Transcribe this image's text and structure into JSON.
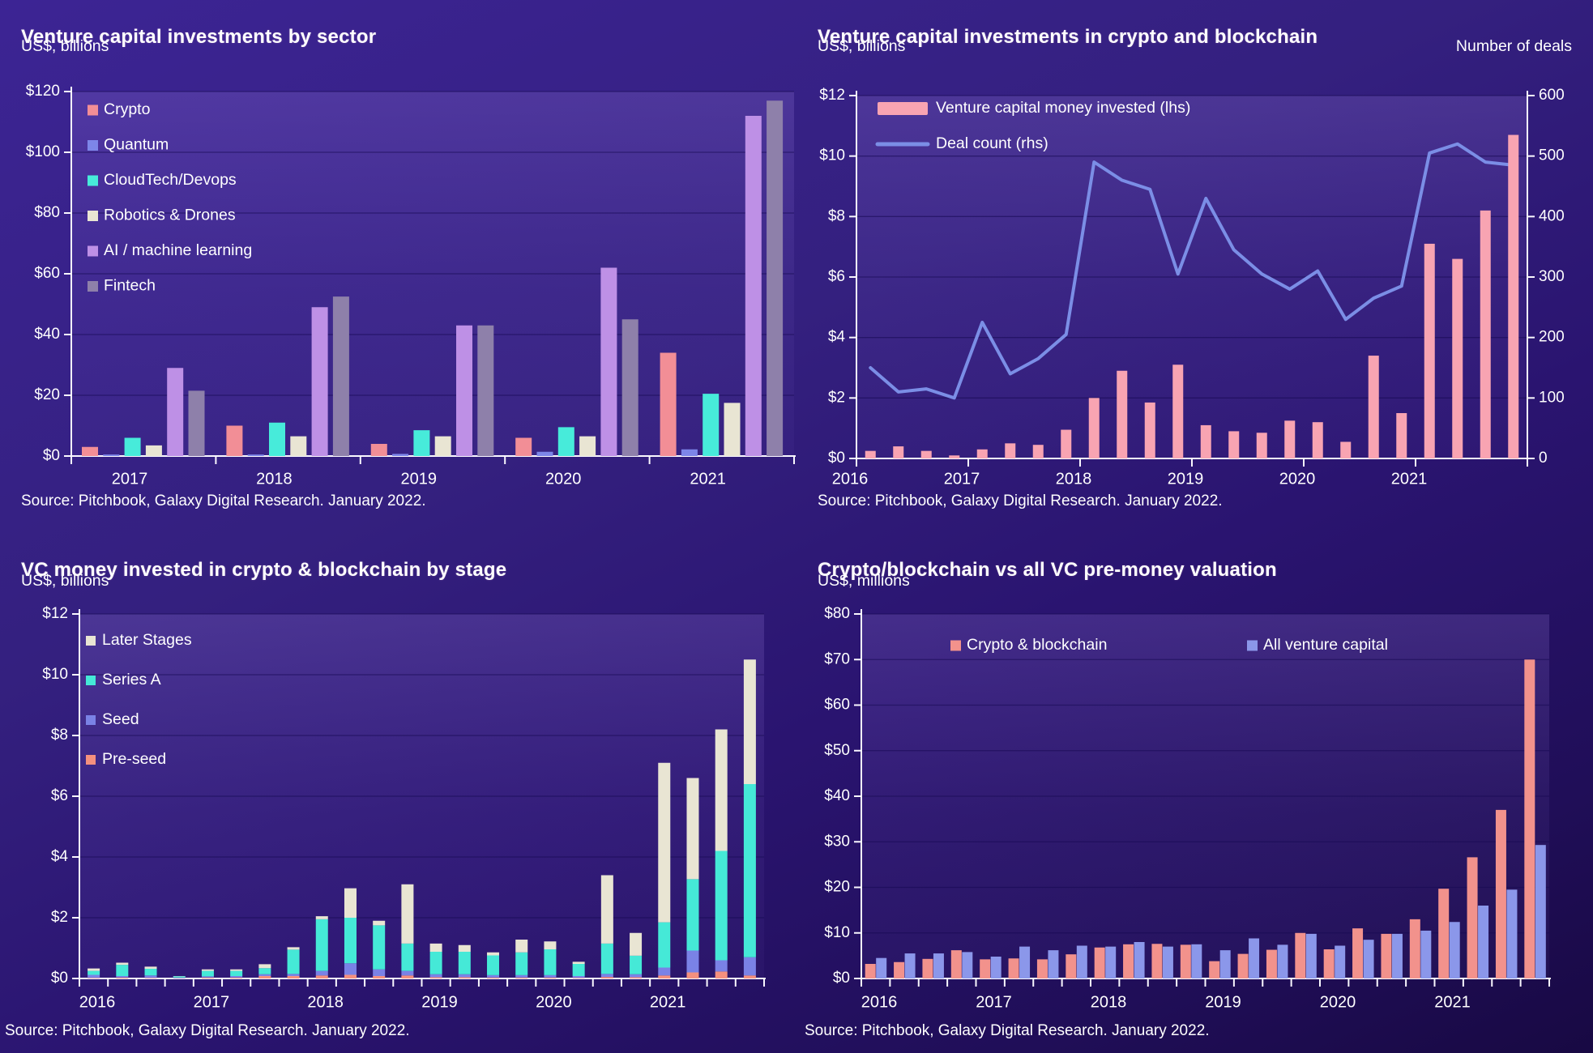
{
  "panels": [
    {
      "id": "sector",
      "title": "Venture capital investments by sector",
      "unit_left": "US$, billions",
      "unit_right": "",
      "source": "Source: Pitchbook, Galaxy Digital Research. January 2022."
    },
    {
      "id": "crypto-vc",
      "title": "Venture capital investments in crypto and blockchain",
      "unit_left": "US$, billions",
      "unit_right": "Number of deals",
      "source": "Source: Pitchbook, Galaxy Digital Research. January 2022."
    },
    {
      "id": "stage",
      "title": "VC money invested in crypto & blockchain by stage",
      "unit_left": "US$, billions",
      "unit_right": "",
      "source": "Source: Pitchbook, Galaxy Digital Research. January 2022."
    },
    {
      "id": "valuation",
      "title": "Crypto/blockchain vs all VC pre-money valuation",
      "unit_left": "US$, millions",
      "unit_right": "",
      "source": "Source: Pitchbook, Galaxy Digital Research. January 2022."
    }
  ],
  "chart_data": [
    {
      "type": "bar",
      "variant": "grouped",
      "title": "Venture capital investments by sector",
      "ylabel": "US$, billions",
      "ylim": [
        0,
        120
      ],
      "ystep": 20,
      "y_prefix": "$",
      "legend_position": "top-left-vertical",
      "categories": [
        "2017",
        "2018",
        "2019",
        "2020",
        "2021"
      ],
      "series": [
        {
          "name": "Crypto",
          "color": "#F28E96",
          "values": [
            3,
            10,
            4,
            6,
            34
          ]
        },
        {
          "name": "Quantum",
          "color": "#7D86E8",
          "values": [
            0.5,
            0.5,
            0.7,
            1.4,
            2.2
          ]
        },
        {
          "name": "CloudTech/Devops",
          "color": "#47EBDA",
          "values": [
            6,
            11,
            8.5,
            9.5,
            20.5
          ]
        },
        {
          "name": "Robotics & Drones",
          "color": "#E9E5D3",
          "values": [
            3.5,
            6.5,
            6.5,
            6.5,
            17.5
          ]
        },
        {
          "name": "AI / machine learning",
          "color": "#BE90E6",
          "values": [
            29,
            49,
            43,
            62,
            112
          ]
        },
        {
          "name": "Fintech",
          "color": "#8E80AA",
          "values": [
            21.5,
            52.5,
            43,
            45,
            117
          ]
        }
      ]
    },
    {
      "type": "bar",
      "variant": "bar-line-dual-axis",
      "title": "Venture capital investments in crypto and blockchain",
      "ylabel_left": "US$, billions",
      "ylabel_right": "Number of deals",
      "ylim_left": [
        0,
        12
      ],
      "ystep_left": 2,
      "y_prefix": "$",
      "ylim_right": [
        0,
        600
      ],
      "ystep_right": 100,
      "legend_position": "top-left",
      "years": [
        "2016",
        "2017",
        "2018",
        "2019",
        "2020",
        "2021"
      ],
      "x_note": "quarterly, 2016Q1-2021Q4",
      "bars": {
        "name": "Venture capital money invested (lhs)",
        "color": "#F8A4B2",
        "values": [
          0.25,
          0.4,
          0.25,
          0.1,
          0.3,
          0.5,
          0.45,
          0.95,
          2.0,
          2.9,
          1.85,
          3.1,
          1.1,
          0.9,
          0.85,
          1.25,
          1.2,
          0.55,
          3.4,
          1.5,
          7.1,
          6.6,
          8.2,
          10.7
        ]
      },
      "line": {
        "name": "Deal count (rhs)",
        "color": "#7B8EE6",
        "values": [
          150,
          110,
          115,
          100,
          225,
          140,
          165,
          205,
          490,
          460,
          445,
          305,
          430,
          345,
          305,
          280,
          310,
          230,
          265,
          285,
          505,
          520,
          490,
          485
        ]
      }
    },
    {
      "type": "bar",
      "variant": "stacked",
      "title": "VC money invested in crypto & blockchain by stage",
      "ylabel": "US$, billions",
      "ylim": [
        0,
        12
      ],
      "ystep": 2,
      "y_prefix": "$",
      "legend_position": "top-left-vertical",
      "years": [
        "2016",
        "2017",
        "2018",
        "2019",
        "2020",
        "2021"
      ],
      "x_note": "quarterly, 2016Q1-2021Q4",
      "series": [
        {
          "name": "Pre-seed",
          "color": "#F4907E",
          "values": [
            0.02,
            0.03,
            0.02,
            0.01,
            0.03,
            0.03,
            0.08,
            0.08,
            0.1,
            0.12,
            0.08,
            0.1,
            0.04,
            0.04,
            0.03,
            0.03,
            0.03,
            0.02,
            0.05,
            0.04,
            0.1,
            0.2,
            0.23,
            0.1
          ]
        },
        {
          "name": "Seed",
          "color": "#7A82E6",
          "values": [
            0.1,
            0.05,
            0.08,
            0.02,
            0.04,
            0.05,
            0.06,
            0.07,
            0.15,
            0.38,
            0.22,
            0.15,
            0.1,
            0.1,
            0.08,
            0.08,
            0.08,
            0.06,
            0.1,
            0.1,
            0.26,
            0.72,
            0.37,
            0.6
          ]
        },
        {
          "name": "Series A",
          "color": "#45E9D7",
          "values": [
            0.13,
            0.37,
            0.22,
            0.04,
            0.18,
            0.17,
            0.2,
            0.8,
            1.7,
            1.5,
            1.45,
            0.9,
            0.74,
            0.74,
            0.65,
            0.75,
            0.85,
            0.4,
            1.0,
            0.61,
            1.49,
            2.35,
            3.6,
            5.7
          ]
        },
        {
          "name": "Later Stages",
          "color": "#E9E5D3",
          "values": [
            0.08,
            0.07,
            0.07,
            0.01,
            0.05,
            0.05,
            0.13,
            0.08,
            0.1,
            0.97,
            0.15,
            1.95,
            0.27,
            0.22,
            0.1,
            0.42,
            0.26,
            0.07,
            2.25,
            0.75,
            5.25,
            3.33,
            4.0,
            4.1
          ]
        }
      ]
    },
    {
      "type": "bar",
      "variant": "paired",
      "title": "Crypto/blockchain vs all VC pre-money valuation",
      "ylabel": "US$, millions",
      "ylim": [
        0,
        80
      ],
      "ystep": 10,
      "y_prefix": "$",
      "legend_position": "top-center-row",
      "years": [
        "2016",
        "2017",
        "2018",
        "2019",
        "2020",
        "2021"
      ],
      "x_note": "quarterly, 2016Q1-2021Q4",
      "series": [
        {
          "name": "Crypto & blockchain",
          "color": "#F2928C",
          "values": [
            3.2,
            3.6,
            4.3,
            6.2,
            4.2,
            4.4,
            4.2,
            5.3,
            6.8,
            7.5,
            7.6,
            7.4,
            3.8,
            5.4,
            6.3,
            10.0,
            6.4,
            11.0,
            9.8,
            13.0,
            19.7,
            26.6,
            37.0,
            70.0
          ]
        },
        {
          "name": "All venture capital",
          "color": "#8B97EA",
          "values": [
            4.5,
            5.5,
            5.5,
            5.8,
            4.8,
            7.0,
            6.2,
            7.2,
            7.0,
            8.0,
            7.0,
            7.5,
            6.2,
            8.8,
            7.4,
            9.8,
            7.2,
            8.5,
            9.8,
            10.5,
            12.4,
            16.0,
            19.5,
            29.3
          ]
        }
      ]
    }
  ]
}
